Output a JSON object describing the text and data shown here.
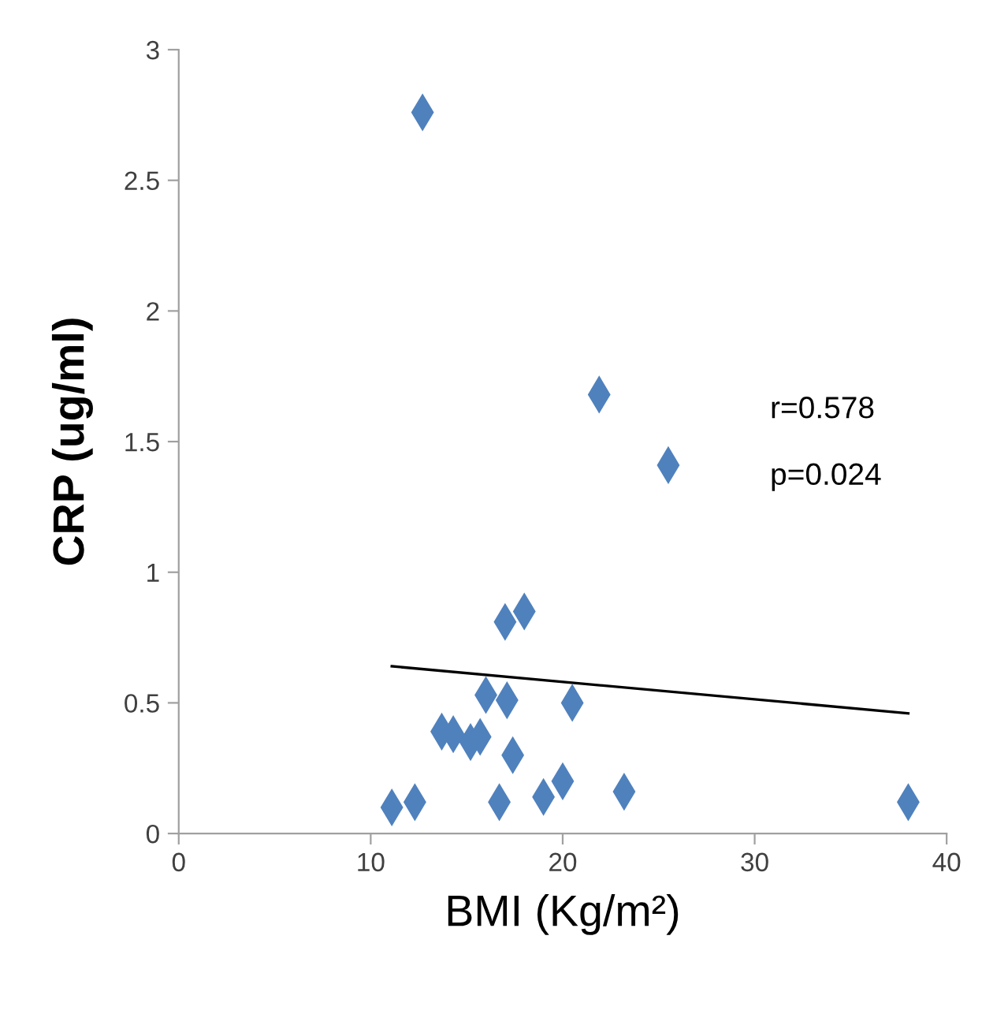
{
  "chart_data": {
    "type": "scatter",
    "xlabel": "BMI (Kg/m²)",
    "ylabel": "CRP (ug/ml)",
    "xlim": [
      0,
      40
    ],
    "xticks": [
      0,
      10,
      20,
      30,
      40
    ],
    "ylim": [
      0,
      3
    ],
    "yticks": [
      0,
      0.5,
      1,
      1.5,
      2,
      2.5,
      3
    ],
    "grid": false,
    "series": [
      {
        "marker": "diamond",
        "color": "#4f81bd",
        "x": [
          11.1,
          12.3,
          13.7,
          14.3,
          15.2,
          15.7,
          16.0,
          17.1,
          17.4,
          17.0,
          18.0,
          20.5,
          16.7,
          19.0,
          20.0,
          23.2,
          38.0,
          12.7,
          21.9,
          25.5
        ],
        "values": [
          0.1,
          0.12,
          0.39,
          0.38,
          0.35,
          0.37,
          0.53,
          0.51,
          0.3,
          0.81,
          0.85,
          0.5,
          0.12,
          0.14,
          0.2,
          0.16,
          0.12,
          2.76,
          1.68,
          1.41
        ]
      },
      {
        "type": "line",
        "color": "#000000",
        "x": [
          11.1,
          38.0
        ],
        "values": [
          0.64,
          0.46
        ]
      }
    ],
    "annotations": [
      "r=0.578",
      "p=0.024"
    ]
  }
}
